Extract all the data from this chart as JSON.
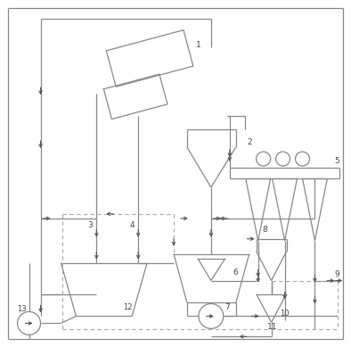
{
  "lc": "#888888",
  "dc": "#aaaaaa",
  "tc": "#444444",
  "lw": 0.9,
  "lwd": 0.8,
  "fig_w": 3.94,
  "fig_h": 3.89,
  "dpi": 100
}
